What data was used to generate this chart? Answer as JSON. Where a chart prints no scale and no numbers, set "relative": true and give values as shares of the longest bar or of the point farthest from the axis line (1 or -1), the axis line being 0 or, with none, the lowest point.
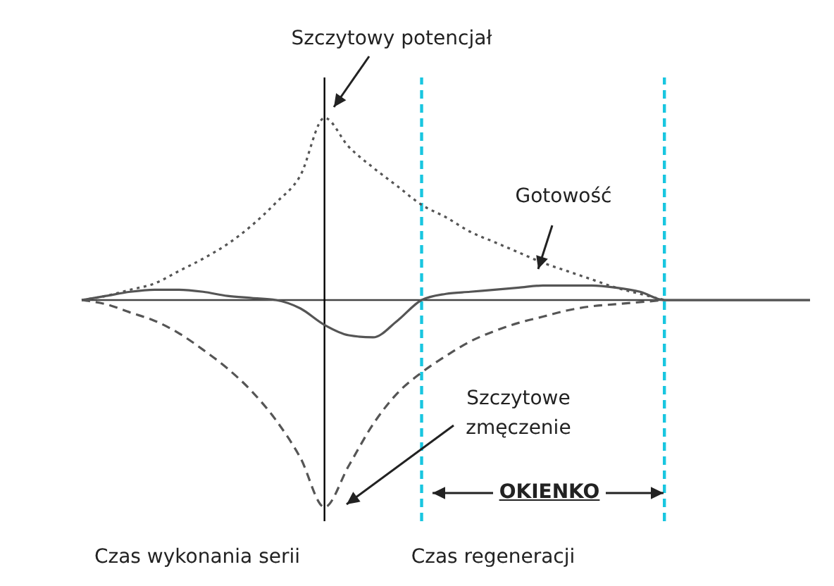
{
  "chart_data": {
    "type": "line",
    "relative": true,
    "marker": "none",
    "categories": [
      null,
      null,
      null,
      null,
      null,
      null,
      null,
      null,
      null,
      null,
      null,
      null,
      null,
      null,
      null,
      null,
      null,
      null,
      null,
      null,
      null,
      null,
      null,
      null,
      null,
      null,
      null,
      null,
      null,
      null,
      null
    ],
    "series": [
      {
        "color": "#555555",
        "line_style": "dotted",
        "values": [
          0,
          0.02,
          0.05,
          0.08,
          0.14,
          0.2,
          0.27,
          0.36,
          0.47,
          0.6,
          0.88,
          0.74,
          0.64,
          0.55,
          0.46,
          0.4,
          0.33,
          0.28,
          0.23,
          0.18,
          0.14,
          0.1,
          0.06,
          0.03,
          0,
          null,
          null,
          null,
          null,
          null,
          null
        ]
      },
      {
        "color": "#555555",
        "line_style": "solid",
        "values": [
          0,
          0.02,
          0.04,
          0.05,
          0.05,
          0.04,
          0.02,
          0.01,
          0,
          -0.04,
          -0.12,
          -0.17,
          -0.18,
          -0.1,
          0,
          0.03,
          0.04,
          0.05,
          0.06,
          0.07,
          0.07,
          0.07,
          0.06,
          0.04,
          0,
          0,
          0,
          0,
          0,
          0,
          0
        ]
      },
      {
        "color": "#555555",
        "line_style": "dashed",
        "values": [
          0,
          -0.02,
          -0.06,
          -0.1,
          -0.16,
          -0.24,
          -0.33,
          -0.44,
          -0.58,
          -0.76,
          -1,
          -0.8,
          -0.6,
          -0.45,
          -0.35,
          -0.27,
          -0.2,
          -0.15,
          -0.11,
          -0.08,
          -0.05,
          -0.03,
          -0.02,
          -0.01,
          0,
          null,
          null,
          null,
          null,
          null,
          null
        ]
      }
    ],
    "annotations": [
      "Szczytowy potencjał",
      "Gotowość",
      "Szczytowe zmęczenie",
      "OKIENKO",
      "Czas wykonania serii",
      "Czas regeneracji"
    ]
  }
}
